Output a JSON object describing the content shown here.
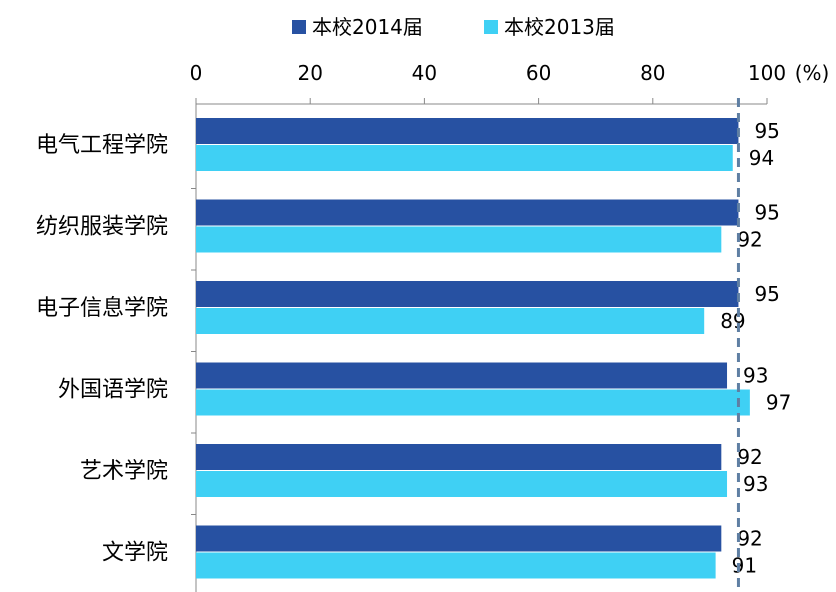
{
  "chart_data": {
    "type": "bar",
    "orientation": "horizontal",
    "unit_label": "(%)",
    "categories": [
      "电气工程学院",
      "纺织服装学院",
      "电子信息学院",
      "外国语学院",
      "艺术学院",
      "文学院"
    ],
    "series": [
      {
        "name": "本校2014届",
        "color": "#2751a2",
        "values": [
          95,
          95,
          95,
          93,
          92,
          92
        ]
      },
      {
        "name": "本校2013届",
        "color": "#3fd0f4",
        "values": [
          94,
          92,
          89,
          97,
          93,
          91
        ]
      }
    ],
    "xlim": [
      0,
      100
    ],
    "xticks": [
      "0",
      "20",
      "40",
      "60",
      "80",
      "100"
    ],
    "reference_line": {
      "value": 95,
      "style": "dashed",
      "color": "#5f7fa3"
    },
    "axis_position": "top",
    "legend_position": "top",
    "grid": false
  }
}
